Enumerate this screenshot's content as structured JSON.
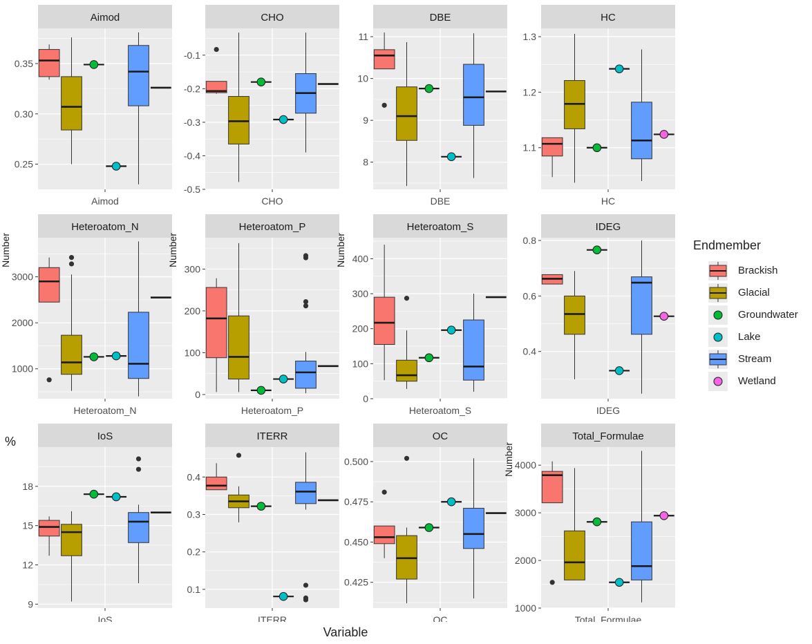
{
  "figure": {
    "x_title": "Variable",
    "legend_title": "Endmember"
  },
  "colors": {
    "Brackish": "#f8766d",
    "Glacial": "#b79f00",
    "Groundwater": "#00ba38",
    "Lake": "#00bfc4",
    "Stream": "#619cff",
    "Wetland": "#f564e3",
    "panel_bg": "#ebebeb",
    "strip_bg": "#d9d9d9",
    "grid": "#ffffff"
  },
  "legend": [
    {
      "name": "Brackish",
      "kind": "box"
    },
    {
      "name": "Glacial",
      "kind": "box"
    },
    {
      "name": "Groundwater",
      "kind": "point"
    },
    {
      "name": "Lake",
      "kind": "point"
    },
    {
      "name": "Stream",
      "kind": "box"
    },
    {
      "name": "Wetland",
      "kind": "point"
    }
  ],
  "chart_data": [
    {
      "type": "box",
      "title": "Aimod",
      "xlabel": "Aimod",
      "ylabel": "",
      "ylim": [
        0.225,
        0.385
      ],
      "yticks": [
        {
          "v": 0.25,
          "label": "0.25"
        },
        {
          "v": 0.3,
          "label": "0.30"
        },
        {
          "v": 0.35,
          "label": "0.35"
        }
      ],
      "boxes": [
        {
          "group": "Brackish",
          "pos": 1,
          "q1": 0.337,
          "median": 0.353,
          "q3": 0.364,
          "min": 0.334,
          "max": 0.369,
          "outliers": []
        },
        {
          "group": "Glacial",
          "pos": 2,
          "q1": 0.284,
          "median": 0.307,
          "q3": 0.337,
          "min": 0.25,
          "max": 0.376,
          "outliers": []
        },
        {
          "group": "Stream",
          "pos": 5,
          "q1": 0.308,
          "median": 0.342,
          "q3": 0.368,
          "min": 0.23,
          "max": 0.381,
          "outliers": []
        }
      ],
      "points": [
        {
          "group": "Groundwater",
          "pos": 3,
          "y": 0.349
        },
        {
          "group": "Lake",
          "pos": 4,
          "y": 0.248
        }
      ],
      "lines": [
        {
          "group": "Wetland",
          "pos": 6,
          "y": 0.326
        }
      ]
    },
    {
      "type": "box",
      "title": "CHO",
      "xlabel": "CHO",
      "ylabel": "",
      "ylim": [
        -0.5,
        -0.02
      ],
      "yticks": [
        {
          "v": -0.5,
          "label": "-0.5"
        },
        {
          "v": -0.4,
          "label": "-0.4"
        },
        {
          "v": -0.3,
          "label": "-0.3"
        },
        {
          "v": -0.2,
          "label": "-0.2"
        },
        {
          "v": -0.1,
          "label": "-0.1"
        }
      ],
      "boxes": [
        {
          "group": "Brackish",
          "pos": 1,
          "q1": -0.212,
          "median": -0.207,
          "q3": -0.178,
          "min": -0.215,
          "max": -0.178,
          "outliers": [
            -0.083
          ]
        },
        {
          "group": "Glacial",
          "pos": 2,
          "q1": -0.365,
          "median": -0.297,
          "q3": -0.223,
          "min": -0.478,
          "max": -0.033,
          "outliers": []
        },
        {
          "group": "Stream",
          "pos": 5,
          "q1": -0.273,
          "median": -0.213,
          "q3": -0.155,
          "min": -0.39,
          "max": -0.033,
          "outliers": []
        }
      ],
      "points": [
        {
          "group": "Groundwater",
          "pos": 3,
          "y": -0.18
        },
        {
          "group": "Lake",
          "pos": 4,
          "y": -0.292
        }
      ],
      "lines": [
        {
          "group": "Wetland",
          "pos": 6,
          "y": -0.186
        }
      ]
    },
    {
      "type": "box",
      "title": "DBE",
      "xlabel": "DBE",
      "ylabel": "",
      "ylim": [
        7.35,
        11.2
      ],
      "yticks": [
        {
          "v": 8,
          "label": "8"
        },
        {
          "v": 9,
          "label": "9"
        },
        {
          "v": 10,
          "label": "10"
        },
        {
          "v": 11,
          "label": "11"
        }
      ],
      "boxes": [
        {
          "group": "Brackish",
          "pos": 1,
          "q1": 10.23,
          "median": 10.55,
          "q3": 10.69,
          "min": 10.23,
          "max": 11.1,
          "outliers": [
            9.36
          ]
        },
        {
          "group": "Glacial",
          "pos": 2,
          "q1": 8.52,
          "median": 9.1,
          "q3": 9.8,
          "min": 7.43,
          "max": 10.87,
          "outliers": []
        },
        {
          "group": "Stream",
          "pos": 5,
          "q1": 8.88,
          "median": 9.55,
          "q3": 10.34,
          "min": 7.62,
          "max": 11.08,
          "outliers": []
        }
      ],
      "points": [
        {
          "group": "Groundwater",
          "pos": 3,
          "y": 9.76
        },
        {
          "group": "Lake",
          "pos": 4,
          "y": 8.13
        }
      ],
      "lines": [
        {
          "group": "Wetland",
          "pos": 6,
          "y": 9.69
        }
      ]
    },
    {
      "type": "box",
      "title": "HC",
      "xlabel": "HC",
      "ylabel": "",
      "ylim": [
        1.025,
        1.315
      ],
      "yticks": [
        {
          "v": 1.1,
          "label": "1.1"
        },
        {
          "v": 1.2,
          "label": "1.2"
        },
        {
          "v": 1.3,
          "label": "1.3"
        }
      ],
      "boxes": [
        {
          "group": "Brackish",
          "pos": 1,
          "q1": 1.085,
          "median": 1.107,
          "q3": 1.118,
          "min": 1.047,
          "max": 1.118,
          "outliers": []
        },
        {
          "group": "Glacial",
          "pos": 2,
          "q1": 1.134,
          "median": 1.179,
          "q3": 1.221,
          "min": 1.037,
          "max": 1.305,
          "outliers": []
        },
        {
          "group": "Stream",
          "pos": 5,
          "q1": 1.08,
          "median": 1.113,
          "q3": 1.182,
          "min": 1.04,
          "max": 1.277,
          "outliers": []
        }
      ],
      "points": [
        {
          "group": "Groundwater",
          "pos": 3,
          "y": 1.1
        },
        {
          "group": "Lake",
          "pos": 4,
          "y": 1.242
        },
        {
          "group": "Wetland",
          "pos": 6,
          "y": 1.124
        }
      ],
      "lines": []
    },
    {
      "type": "box",
      "title": "Heteroatom_N",
      "xlabel": "Heteroatom_N",
      "ylabel": "Number",
      "ylim": [
        350,
        3850
      ],
      "yticks": [
        {
          "v": 1000,
          "label": "1000"
        },
        {
          "v": 2000,
          "label": "2000"
        },
        {
          "v": 3000,
          "label": "3000"
        }
      ],
      "boxes": [
        {
          "group": "Brackish",
          "pos": 1,
          "q1": 2450,
          "median": 2900,
          "q3": 3200,
          "min": 2450,
          "max": 3420,
          "outliers": [
            760
          ]
        },
        {
          "group": "Glacial",
          "pos": 2,
          "q1": 880,
          "median": 1140,
          "q3": 1730,
          "min": 520,
          "max": 3050,
          "outliers": [
            3280,
            3420
          ]
        },
        {
          "group": "Stream",
          "pos": 5,
          "q1": 790,
          "median": 1110,
          "q3": 2230,
          "min": 400,
          "max": 3770,
          "outliers": []
        }
      ],
      "points": [
        {
          "group": "Groundwater",
          "pos": 3,
          "y": 1260
        },
        {
          "group": "Lake",
          "pos": 4,
          "y": 1280
        }
      ],
      "lines": [
        {
          "group": "Wetland",
          "pos": 6,
          "y": 2550
        }
      ]
    },
    {
      "type": "box",
      "title": "Heteroatom_P",
      "xlabel": "Heteroatom_P",
      "ylabel": "Number",
      "ylim": [
        -10,
        375
      ],
      "yticks": [
        {
          "v": 0,
          "label": "0"
        },
        {
          "v": 100,
          "label": "100"
        },
        {
          "v": 200,
          "label": "200"
        },
        {
          "v": 300,
          "label": "300"
        }
      ],
      "boxes": [
        {
          "group": "Brackish",
          "pos": 1,
          "q1": 88,
          "median": 182,
          "q3": 256,
          "min": 6,
          "max": 278,
          "outliers": []
        },
        {
          "group": "Glacial",
          "pos": 2,
          "q1": 37,
          "median": 90,
          "q3": 188,
          "min": 6,
          "max": 362,
          "outliers": []
        },
        {
          "group": "Stream",
          "pos": 5,
          "q1": 15,
          "median": 53,
          "q3": 80,
          "min": 3,
          "max": 102,
          "outliers": [
            212,
            222,
            327,
            332
          ]
        }
      ],
      "points": [
        {
          "group": "Groundwater",
          "pos": 3,
          "y": 10
        },
        {
          "group": "Lake",
          "pos": 4,
          "y": 37
        }
      ],
      "lines": [
        {
          "group": "Wetland",
          "pos": 6,
          "y": 68
        }
      ]
    },
    {
      "type": "box",
      "title": "Heteroatom_S",
      "xlabel": "Heteroatom_S",
      "ylabel": "Number",
      "ylim": [
        0,
        460
      ],
      "yticks": [
        {
          "v": 0,
          "label": "0"
        },
        {
          "v": 100,
          "label": "100"
        },
        {
          "v": 200,
          "label": "200"
        },
        {
          "v": 300,
          "label": "300"
        },
        {
          "v": 400,
          "label": "400"
        }
      ],
      "boxes": [
        {
          "group": "Brackish",
          "pos": 1,
          "q1": 155,
          "median": 217,
          "q3": 290,
          "min": 53,
          "max": 440,
          "outliers": []
        },
        {
          "group": "Glacial",
          "pos": 2,
          "q1": 50,
          "median": 67,
          "q3": 110,
          "min": 28,
          "max": 195,
          "outliers": [
            287
          ]
        },
        {
          "group": "Stream",
          "pos": 5,
          "q1": 53,
          "median": 92,
          "q3": 225,
          "min": 20,
          "max": 300,
          "outliers": []
        }
      ],
      "points": [
        {
          "group": "Groundwater",
          "pos": 3,
          "y": 117
        },
        {
          "group": "Lake",
          "pos": 4,
          "y": 196
        }
      ],
      "lines": [
        {
          "group": "Wetland",
          "pos": 6,
          "y": 290
        }
      ]
    },
    {
      "type": "box",
      "title": "IDEG",
      "xlabel": "IDEG",
      "ylabel": "",
      "ylim": [
        0.23,
        0.81
      ],
      "yticks": [
        {
          "v": 0.4,
          "label": "0.4"
        },
        {
          "v": 0.6,
          "label": "0.6"
        },
        {
          "v": 0.8,
          "label": "0.8"
        }
      ],
      "boxes": [
        {
          "group": "Brackish",
          "pos": 1,
          "q1": 0.643,
          "median": 0.662,
          "q3": 0.677,
          "min": 0.643,
          "max": 0.677,
          "outliers": []
        },
        {
          "group": "Glacial",
          "pos": 2,
          "q1": 0.462,
          "median": 0.535,
          "q3": 0.6,
          "min": 0.3,
          "max": 0.69,
          "outliers": []
        },
        {
          "group": "Stream",
          "pos": 5,
          "q1": 0.462,
          "median": 0.648,
          "q3": 0.669,
          "min": 0.248,
          "max": 0.8,
          "outliers": []
        }
      ],
      "points": [
        {
          "group": "Groundwater",
          "pos": 3,
          "y": 0.766
        },
        {
          "group": "Lake",
          "pos": 4,
          "y": 0.331
        },
        {
          "group": "Wetland",
          "pos": 6,
          "y": 0.527
        }
      ],
      "lines": []
    },
    {
      "type": "box",
      "title": "IoS",
      "xlabel": "IoS",
      "ylabel": "%",
      "ylim": [
        8.7,
        21.0
      ],
      "yticks": [
        {
          "v": 9,
          "label": "9"
        },
        {
          "v": 12,
          "label": "12"
        },
        {
          "v": 15,
          "label": "15"
        },
        {
          "v": 18,
          "label": "18"
        }
      ],
      "boxes": [
        {
          "group": "Brackish",
          "pos": 1,
          "q1": 14.2,
          "median": 14.9,
          "q3": 15.4,
          "min": 12.7,
          "max": 15.7,
          "outliers": []
        },
        {
          "group": "Glacial",
          "pos": 2,
          "q1": 12.7,
          "median": 14.5,
          "q3": 15.1,
          "min": 9.2,
          "max": 16.1,
          "outliers": []
        },
        {
          "group": "Stream",
          "pos": 5,
          "q1": 13.7,
          "median": 15.3,
          "q3": 16.0,
          "min": 10.6,
          "max": 16.6,
          "outliers": [
            19.3,
            20.1
          ]
        }
      ],
      "points": [
        {
          "group": "Groundwater",
          "pos": 3,
          "y": 17.4
        },
        {
          "group": "Lake",
          "pos": 4,
          "y": 17.2
        }
      ],
      "lines": [
        {
          "group": "Wetland",
          "pos": 6,
          "y": 16.0
        }
      ]
    },
    {
      "type": "box",
      "title": "ITERR",
      "xlabel": "ITERR",
      "ylabel": "",
      "ylim": [
        0.05,
        0.48
      ],
      "yticks": [
        {
          "v": 0.1,
          "label": "0.1"
        },
        {
          "v": 0.2,
          "label": "0.2"
        },
        {
          "v": 0.3,
          "label": "0.3"
        },
        {
          "v": 0.4,
          "label": "0.4"
        }
      ],
      "boxes": [
        {
          "group": "Brackish",
          "pos": 1,
          "q1": 0.366,
          "median": 0.377,
          "q3": 0.4,
          "min": 0.366,
          "max": 0.437,
          "outliers": []
        },
        {
          "group": "Glacial",
          "pos": 2,
          "q1": 0.318,
          "median": 0.335,
          "q3": 0.352,
          "min": 0.279,
          "max": 0.375,
          "outliers": [
            0.458
          ]
        },
        {
          "group": "Stream",
          "pos": 5,
          "q1": 0.329,
          "median": 0.361,
          "q3": 0.386,
          "min": 0.313,
          "max": 0.466,
          "outliers": [
            0.072,
            0.077,
            0.111
          ]
        }
      ],
      "points": [
        {
          "group": "Groundwater",
          "pos": 3,
          "y": 0.322
        },
        {
          "group": "Lake",
          "pos": 4,
          "y": 0.081
        }
      ],
      "lines": [
        {
          "group": "Wetland",
          "pos": 6,
          "y": 0.338
        }
      ]
    },
    {
      "type": "box",
      "title": "OC",
      "xlabel": "OC",
      "ylabel": "",
      "ylim": [
        0.409,
        0.509
      ],
      "yticks": [
        {
          "v": 0.425,
          "label": "0.425"
        },
        {
          "v": 0.45,
          "label": "0.450"
        },
        {
          "v": 0.475,
          "label": "0.475"
        },
        {
          "v": 0.5,
          "label": "0.500"
        }
      ],
      "boxes": [
        {
          "group": "Brackish",
          "pos": 1,
          "q1": 0.449,
          "median": 0.453,
          "q3": 0.46,
          "min": 0.44,
          "max": 0.46,
          "outliers": [
            0.481
          ]
        },
        {
          "group": "Glacial",
          "pos": 2,
          "q1": 0.427,
          "median": 0.44,
          "q3": 0.454,
          "min": 0.412,
          "max": 0.459,
          "outliers": [
            0.502
          ]
        },
        {
          "group": "Stream",
          "pos": 5,
          "q1": 0.446,
          "median": 0.455,
          "q3": 0.471,
          "min": 0.415,
          "max": 0.502,
          "outliers": []
        }
      ],
      "points": [
        {
          "group": "Groundwater",
          "pos": 3,
          "y": 0.459
        },
        {
          "group": "Lake",
          "pos": 4,
          "y": 0.475
        }
      ],
      "lines": [
        {
          "group": "Wetland",
          "pos": 6,
          "y": 0.468
        }
      ]
    },
    {
      "type": "box",
      "title": "Total_Formulae",
      "xlabel": "Total_Formulae",
      "ylabel": "Number",
      "ylim": [
        1000,
        4380
      ],
      "yticks": [
        {
          "v": 1000,
          "label": "1000"
        },
        {
          "v": 2000,
          "label": "2000"
        },
        {
          "v": 3000,
          "label": "3000"
        },
        {
          "v": 4000,
          "label": "4000"
        }
      ],
      "boxes": [
        {
          "group": "Brackish",
          "pos": 1,
          "q1": 3210,
          "median": 3790,
          "q3": 3870,
          "min": 3210,
          "max": 4080,
          "outliers": [
            1540
          ]
        },
        {
          "group": "Glacial",
          "pos": 2,
          "q1": 1590,
          "median": 1960,
          "q3": 2620,
          "min": 1590,
          "max": 3940,
          "outliers": []
        },
        {
          "group": "Stream",
          "pos": 5,
          "q1": 1590,
          "median": 1880,
          "q3": 2810,
          "min": 1120,
          "max": 4300,
          "outliers": []
        }
      ],
      "points": [
        {
          "group": "Groundwater",
          "pos": 3,
          "y": 2810
        },
        {
          "group": "Lake",
          "pos": 4,
          "y": 1540
        },
        {
          "group": "Wetland",
          "pos": 6,
          "y": 2940
        }
      ],
      "lines": []
    }
  ]
}
